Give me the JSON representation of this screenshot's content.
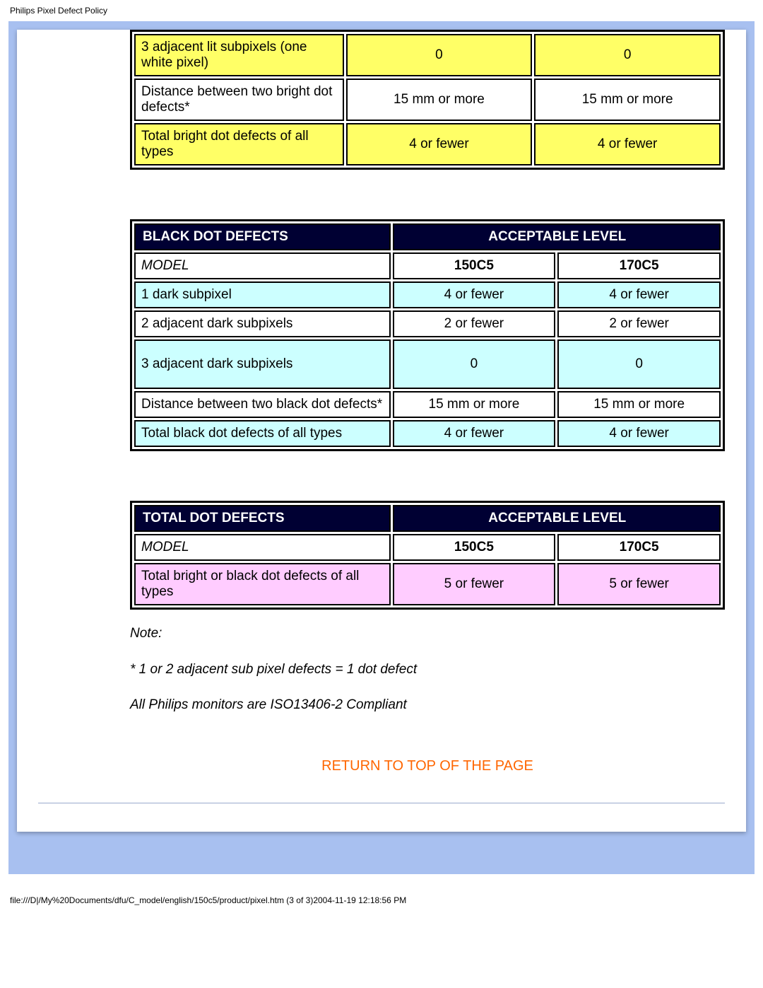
{
  "header_title": "Philips Pixel Defect Policy",
  "colors": {
    "frame_bg": "#a8c0f0",
    "header_dark": "#000033",
    "yellow": "#ffff66",
    "cyan": "#ccffff",
    "pink": "#ffccff",
    "link": "#ff6600"
  },
  "table_bright_partial": {
    "rows": [
      {
        "label": "3 adjacent lit subpixels (one white pixel)",
        "c1": "0",
        "c2": "0",
        "bg": "yellow"
      },
      {
        "label": "Distance between two bright dot defects*",
        "c1": "15 mm or more",
        "c2": "15 mm or more",
        "bg": "white"
      },
      {
        "label": "Total bright dot defects of all types",
        "c1": "4 or fewer",
        "c2": "4 or fewer",
        "bg": "yellow"
      }
    ]
  },
  "table_black": {
    "header_left": "BLACK DOT DEFECTS",
    "header_right": "ACCEPTABLE LEVEL",
    "model_label": "MODEL",
    "model_c1": "150C5",
    "model_c2": "170C5",
    "rows": [
      {
        "label": "1 dark subpixel",
        "c1": "4 or fewer",
        "c2": "4 or fewer",
        "bg": "cyan"
      },
      {
        "label": "2 adjacent dark subpixels",
        "c1": "2 or fewer",
        "c2": "2 or fewer",
        "bg": "white"
      },
      {
        "label": "3 adjacent dark subpixels",
        "c1": "0",
        "c2": "0",
        "bg": "cyan",
        "tall": true
      },
      {
        "label": "Distance between two black dot defects*",
        "c1": "15 mm or more",
        "c2": "15 mm or more",
        "bg": "white"
      },
      {
        "label": "Total black dot defects of all types",
        "c1": "4 or fewer",
        "c2": "4 or fewer",
        "bg": "cyan"
      }
    ]
  },
  "table_total": {
    "header_left": "TOTAL DOT DEFECTS",
    "header_right": "ACCEPTABLE LEVEL",
    "model_label": "MODEL",
    "model_c1": "150C5",
    "model_c2": "170C5",
    "rows": [
      {
        "label": "Total bright or black dot defects of all types",
        "c1": "5 or fewer",
        "c2": "5 or fewer",
        "bg": "pink"
      }
    ]
  },
  "notes": {
    "heading": "Note:",
    "line1": "* 1 or 2 adjacent sub pixel defects = 1 dot defect",
    "line2": "All Philips monitors are ISO13406-2 Compliant"
  },
  "return_link": "RETURN TO TOP OF THE PAGE",
  "footer_path": "file:///D|/My%20Documents/dfu/C_model/english/150c5/product/pixel.htm (3 of 3)2004-11-19 12:18:56 PM"
}
